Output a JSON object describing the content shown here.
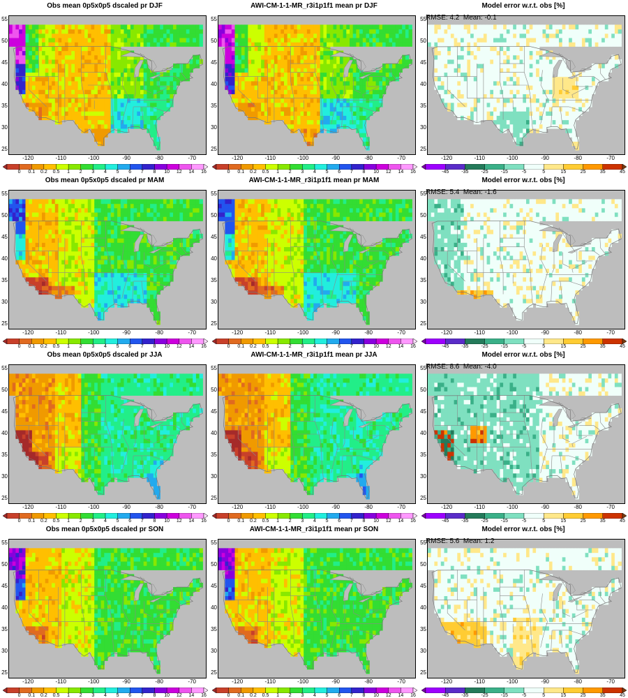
{
  "rows": [
    {
      "season": "DJF",
      "titles": [
        "Obs mean 0p5x0p5 dscaled pr DJF",
        "AWI-CM-1-1-MR_r3i1p1f1 mean pr DJF",
        "Model error w.r.t. obs [%]"
      ],
      "stats": "RMSE: 4.2  Mean: -0.1"
    },
    {
      "season": "MAM",
      "titles": [
        "Obs mean 0p5x0p5 dscaled pr MAM",
        "AWI-CM-1-1-MR_r3i1p1f1 mean pr MAM",
        "Model error w.r.t. obs [%]"
      ],
      "stats": "RMSE: 5.4  Mean: -1.6"
    },
    {
      "season": "JJA",
      "titles": [
        "Obs mean 0p5x0p5 dscaled pr JJA",
        "AWI-CM-1-1-MR_r3i1p1f1 mean pr JJA",
        "Model error w.r.t. obs [%]"
      ],
      "stats": "RMSE: 8.6  Mean: -4.0"
    },
    {
      "season": "SON",
      "titles": [
        "Obs mean 0p5x0p5 dscaled pr SON",
        "AWI-CM-1-1-MR_r3i1p1f1 mean pr SON",
        "Model error w.r.t. obs [%]"
      ],
      "stats": "RMSE: 5.6  Mean: 1.2"
    }
  ],
  "chart_data": {
    "type": "heatmap",
    "yticks": [
      "25",
      "30",
      "35",
      "40",
      "45",
      "50",
      "55"
    ],
    "xticks": [
      "-120",
      "-110",
      "-100",
      "-90",
      "-80",
      "-70"
    ],
    "pr_levels": [
      "0",
      "0.1",
      "0.2",
      "0.5",
      "1",
      "2",
      "3",
      "4",
      "5",
      "6",
      "7",
      "8",
      "10",
      "12",
      "14",
      "16"
    ],
    "pr_colors": [
      "#a52a2a",
      "#c8402a",
      "#e06a20",
      "#f09a00",
      "#ffbf00",
      "#ccff00",
      "#88e800",
      "#33dd33",
      "#22ee88",
      "#22eedd",
      "#22aaee",
      "#2255ee",
      "#3322cc",
      "#8800dd",
      "#cc00dd",
      "#ee55ee",
      "#ff99ff",
      "#ffe0ff"
    ],
    "err_levels": [
      "-45",
      "-35",
      "-25",
      "-15",
      "-5",
      "5",
      "15",
      "25",
      "35",
      "45"
    ],
    "err_colors": [
      "#7a00a8",
      "#9d00ff",
      "#5a2cc8",
      "#247a5a",
      "#3ab088",
      "#7fe0c0",
      "#f0fffa",
      "#ffe88a",
      "#ffcc33",
      "#ff9900",
      "#cc3300",
      "#7a3a10"
    ]
  }
}
